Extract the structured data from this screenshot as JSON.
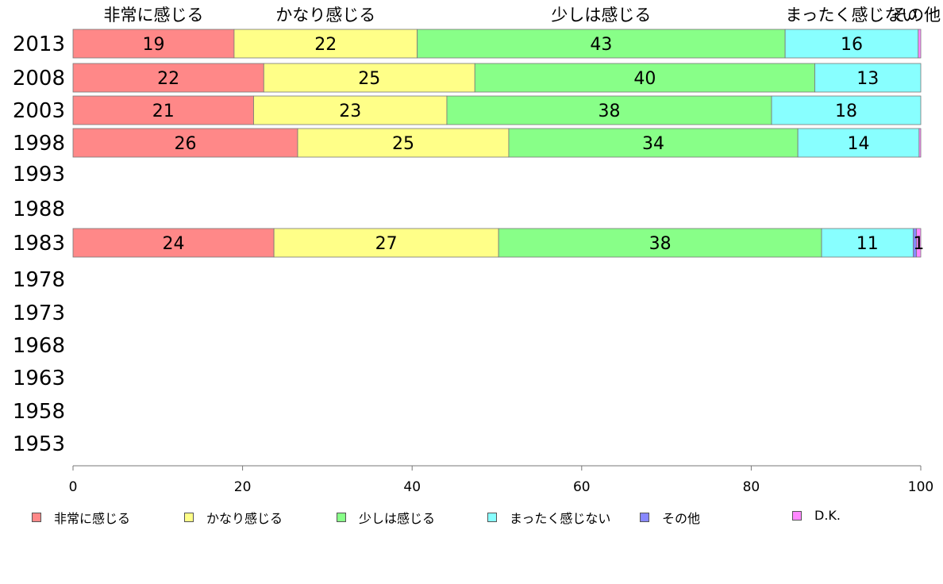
{
  "chart_data": {
    "type": "bar",
    "orientation": "horizontal",
    "stacked": true,
    "categories": [
      "2013",
      "2008",
      "2003",
      "1998",
      "1993",
      "1988",
      "1983",
      "1978",
      "1973",
      "1968",
      "1963",
      "1958",
      "1953"
    ],
    "series": [
      {
        "name": "非常に感じる",
        "color": "#ff8888",
        "values": [
          19,
          22.5,
          21.3,
          26.5,
          null,
          null,
          23.7,
          null,
          null,
          null,
          null,
          null,
          null
        ],
        "labels": [
          "19",
          "22",
          "21",
          "26",
          "",
          "",
          "24",
          "",
          "",
          "",
          "",
          "",
          ""
        ]
      },
      {
        "name": "かなり感じる",
        "color": "#ffff88",
        "values": [
          21.6,
          24.9,
          22.8,
          24.9,
          null,
          null,
          26.5,
          null,
          null,
          null,
          null,
          null,
          null
        ],
        "labels": [
          "22",
          "25",
          "23",
          "25",
          "",
          "",
          "27",
          "",
          "",
          "",
          "",
          "",
          ""
        ]
      },
      {
        "name": "少しは感じる",
        "color": "#88ff88",
        "values": [
          43.4,
          40.1,
          38.3,
          34.1,
          null,
          null,
          38.1,
          null,
          null,
          null,
          null,
          null,
          null
        ],
        "labels": [
          "43",
          "40",
          "38",
          "34",
          "",
          "",
          "38",
          "",
          "",
          "",
          "",
          "",
          ""
        ]
      },
      {
        "name": "まったく感じない",
        "color": "#88ffff",
        "values": [
          15.7,
          12.5,
          17.6,
          14.3,
          null,
          null,
          10.8,
          null,
          null,
          null,
          null,
          null,
          null
        ],
        "labels": [
          "16",
          "13",
          "18",
          "14",
          "",
          "",
          "11",
          "",
          "",
          "",
          "",
          "",
          ""
        ]
      },
      {
        "name": "その他",
        "color": "#8888ff",
        "values": [
          0,
          0,
          0,
          0,
          null,
          null,
          0.4,
          null,
          null,
          null,
          null,
          null,
          null
        ],
        "labels": [
          "",
          "",
          "",
          "",
          "",
          "",
          "",
          "",
          "",
          "",
          "",
          "",
          ""
        ]
      },
      {
        "name": "D.K.",
        "color": "#ff88ff",
        "values": [
          0.3,
          0,
          0,
          0.2,
          null,
          null,
          0.5,
          null,
          null,
          null,
          null,
          null,
          null
        ],
        "labels": [
          "",
          "",
          "",
          "",
          "",
          "",
          "1",
          "",
          "",
          "",
          "",
          "",
          ""
        ]
      }
    ],
    "xlim": [
      0,
      100
    ],
    "xticks": [
      "0",
      "20",
      "40",
      "60",
      "80",
      "100"
    ],
    "top_labels": [
      "非常に感じる",
      "かなり感じる",
      "少しは感じる",
      "まったく感じない",
      "その他"
    ],
    "legend_position": "bottom",
    "grid": false
  }
}
